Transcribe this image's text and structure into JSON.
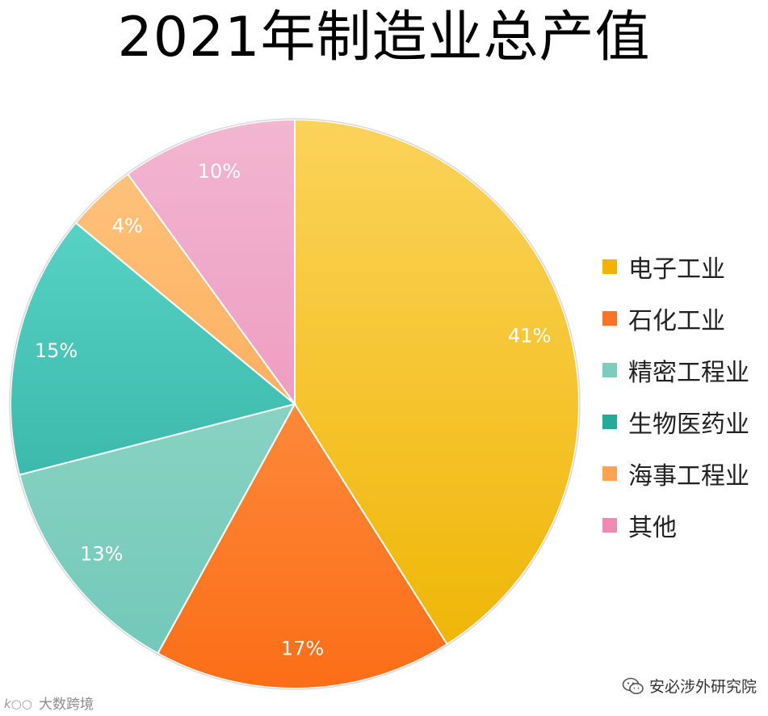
{
  "title": "2021年制造业总产值",
  "chart_data": {
    "type": "pie",
    "title": "2021年制造业总产值",
    "legend_position": "right",
    "categories": [
      "电子工业",
      "石化工业",
      "精密工程业",
      "生物医药业",
      "海事工程业",
      "其他"
    ],
    "values": [
      41,
      17,
      13,
      15,
      4,
      10
    ],
    "labels": [
      "41%",
      "17%",
      "13%",
      "15%",
      "4%",
      "10%"
    ],
    "colors_top": [
      "#fbd35a",
      "#fea25c",
      "#a2dccf",
      "#62dccf",
      "#fec680",
      "#f2b6d1"
    ],
    "colors_bottom": [
      "#efb400",
      "#fc6e17",
      "#6fc8b8",
      "#25a597",
      "#fc9a42",
      "#ec85b0"
    ],
    "legend_colors": [
      "#f0b400",
      "#fb7229",
      "#7ccdbd",
      "#26a89a",
      "#fda352",
      "#ee8bb5"
    ]
  },
  "footer": {
    "source": "安必涉外研究院",
    "watermark": "大数跨境"
  }
}
